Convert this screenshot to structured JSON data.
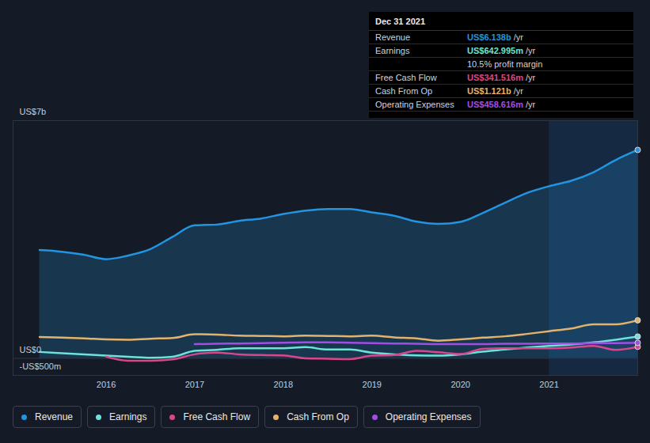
{
  "chart_data": {
    "type": "line",
    "x": [
      2015.25,
      2015.5,
      2015.75,
      2016.0,
      2016.25,
      2016.5,
      2016.75,
      2017.0,
      2017.25,
      2017.5,
      2017.75,
      2018.0,
      2018.25,
      2018.5,
      2018.75,
      2019.0,
      2019.25,
      2019.5,
      2019.75,
      2020.0,
      2020.25,
      2020.5,
      2020.75,
      2021.0,
      2021.25,
      2021.5,
      2021.75,
      2022.0
    ],
    "xlim": [
      2014.95,
      2022.0
    ],
    "xticks": [
      2016,
      2017,
      2018,
      2019,
      2020,
      2021
    ],
    "ylim": [
      -0.5,
      7
    ],
    "yticks": [
      {
        "value": 7,
        "label": "US$7b"
      },
      {
        "value": 0,
        "label": "US$0"
      },
      {
        "value": -0.5,
        "label": "-US$500m"
      }
    ],
    "grid": true,
    "legend": "bottom",
    "series": [
      {
        "name": "Revenue",
        "color": "#2394df",
        "type": "area",
        "values": [
          3.19,
          3.14,
          3.05,
          2.92,
          3.03,
          3.22,
          3.58,
          3.92,
          3.94,
          4.05,
          4.12,
          4.25,
          4.35,
          4.4,
          4.4,
          4.3,
          4.2,
          4.03,
          3.96,
          4.02,
          4.28,
          4.58,
          4.87,
          5.07,
          5.23,
          5.48,
          5.84,
          6.138
        ]
      },
      {
        "name": "Earnings",
        "color": "#6ce3d6",
        "type": "line",
        "values": [
          0.19,
          0.15,
          0.12,
          0.08,
          0.05,
          0.02,
          0.05,
          0.22,
          0.25,
          0.3,
          0.3,
          0.3,
          0.33,
          0.26,
          0.26,
          0.17,
          0.12,
          0.09,
          0.08,
          0.12,
          0.2,
          0.26,
          0.32,
          0.37,
          0.41,
          0.47,
          0.55,
          0.642995
        ]
      },
      {
        "name": "Free Cash Flow",
        "color": "#d9478b",
        "type": "line",
        "values": [
          null,
          null,
          null,
          0.05,
          -0.07,
          -0.07,
          -0.03,
          0.12,
          0.17,
          0.12,
          0.1,
          0.09,
          0.0,
          -0.01,
          -0.02,
          0.08,
          0.1,
          0.22,
          0.18,
          0.13,
          0.28,
          0.3,
          0.3,
          0.3,
          0.32,
          0.37,
          0.25,
          0.341516
        ]
      },
      {
        "name": "Cash From Op",
        "color": "#e3b36b",
        "type": "line",
        "values": [
          0.63,
          0.61,
          0.59,
          0.56,
          0.55,
          0.58,
          0.6,
          0.71,
          0.7,
          0.67,
          0.66,
          0.65,
          0.67,
          0.66,
          0.65,
          0.67,
          0.62,
          0.59,
          0.52,
          0.56,
          0.61,
          0.65,
          0.72,
          0.8,
          0.88,
          1.0,
          1.0,
          1.121
        ]
      },
      {
        "name": "Operating Expenses",
        "color": "#a24de6",
        "type": "line",
        "values": [
          null,
          null,
          null,
          null,
          null,
          null,
          null,
          0.42,
          0.43,
          0.44,
          0.45,
          0.46,
          0.47,
          0.47,
          0.46,
          0.45,
          0.44,
          0.43,
          0.42,
          0.42,
          0.42,
          0.43,
          0.43,
          0.44,
          0.44,
          0.45,
          0.45,
          0.458616
        ]
      }
    ],
    "annotation": {
      "title": "Dec 31 2021",
      "rows": [
        {
          "label": "Revenue",
          "value": "US$6.138b",
          "unit": "/yr"
        },
        {
          "label": "Earnings",
          "value": "US$642.995m",
          "unit": "/yr"
        },
        {
          "note": "10.5% profit margin"
        },
        {
          "label": "Free Cash Flow",
          "value": "US$341.516m",
          "unit": "/yr"
        },
        {
          "label": "Cash From Op",
          "value": "US$1.121b",
          "unit": "/yr"
        },
        {
          "label": "Operating Expenses",
          "value": "US$458.616m",
          "unit": "/yr"
        }
      ]
    }
  }
}
